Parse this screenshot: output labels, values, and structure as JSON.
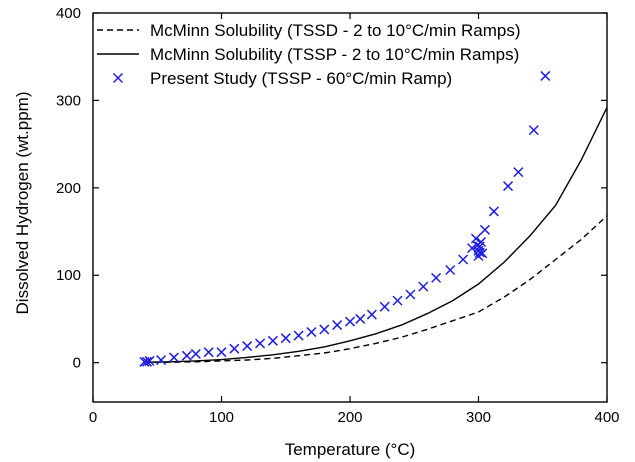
{
  "chart_data": {
    "type": "line",
    "xlabel": "Temperature (°C)",
    "ylabel": "Dissolved Hydrogen (wt.ppm)",
    "xlim": [
      0,
      400
    ],
    "ylim": [
      -45,
      400
    ],
    "xticks": [
      0,
      100,
      200,
      300,
      400
    ],
    "yticks": [
      0,
      100,
      200,
      300,
      400
    ],
    "grid": false,
    "legend_position": "top-left",
    "series": [
      {
        "name": "McMinn Solubility (TSSD - 2 to 10°C/min Ramps)",
        "kind": "line",
        "style": "dashed",
        "color": "#000000",
        "x": [
          40,
          60,
          80,
          100,
          120,
          140,
          160,
          180,
          200,
          220,
          240,
          260,
          280,
          300,
          320,
          340,
          360,
          380,
          400
        ],
        "y": [
          0.2,
          0.5,
          1,
          2,
          3,
          5,
          8,
          11,
          16,
          22,
          29,
          38,
          48,
          58,
          75,
          95,
          118,
          141,
          168
        ]
      },
      {
        "name": "McMinn Solubility (TSSP - 2 to 10°C/min Ramps)",
        "kind": "line",
        "style": "solid",
        "color": "#000000",
        "x": [
          40,
          60,
          80,
          100,
          120,
          140,
          160,
          180,
          200,
          220,
          240,
          260,
          280,
          300,
          320,
          340,
          360,
          380,
          400
        ],
        "y": [
          0.5,
          1,
          2,
          3.5,
          6,
          9,
          13,
          18,
          25,
          33,
          43,
          56,
          71,
          90,
          115,
          145,
          180,
          232,
          292
        ]
      },
      {
        "name": "Present Study (TSSP - 60°C/min Ramp)",
        "kind": "scatter",
        "marker": "x",
        "color": "#1f1fe0",
        "x": [
          40,
          42,
          44,
          53,
          63,
          73,
          80,
          90,
          100,
          110,
          120,
          130,
          140,
          150,
          160,
          170,
          180,
          190,
          200,
          208,
          217,
          227,
          237,
          247,
          257,
          267,
          278,
          288,
          295,
          298,
          299,
          300,
          300,
          301,
          301,
          302,
          303,
          305,
          312,
          323,
          331,
          343,
          352
        ],
        "y": [
          1,
          1,
          2,
          3,
          6,
          8,
          10,
          12,
          12,
          16,
          19,
          22,
          25,
          28,
          31,
          35,
          38,
          43,
          47,
          50,
          55,
          64,
          71,
          78,
          87,
          97,
          106,
          118,
          131,
          142,
          134,
          128,
          122,
          126,
          133,
          138,
          125,
          152,
          173,
          202,
          218,
          266,
          328
        ]
      }
    ]
  }
}
